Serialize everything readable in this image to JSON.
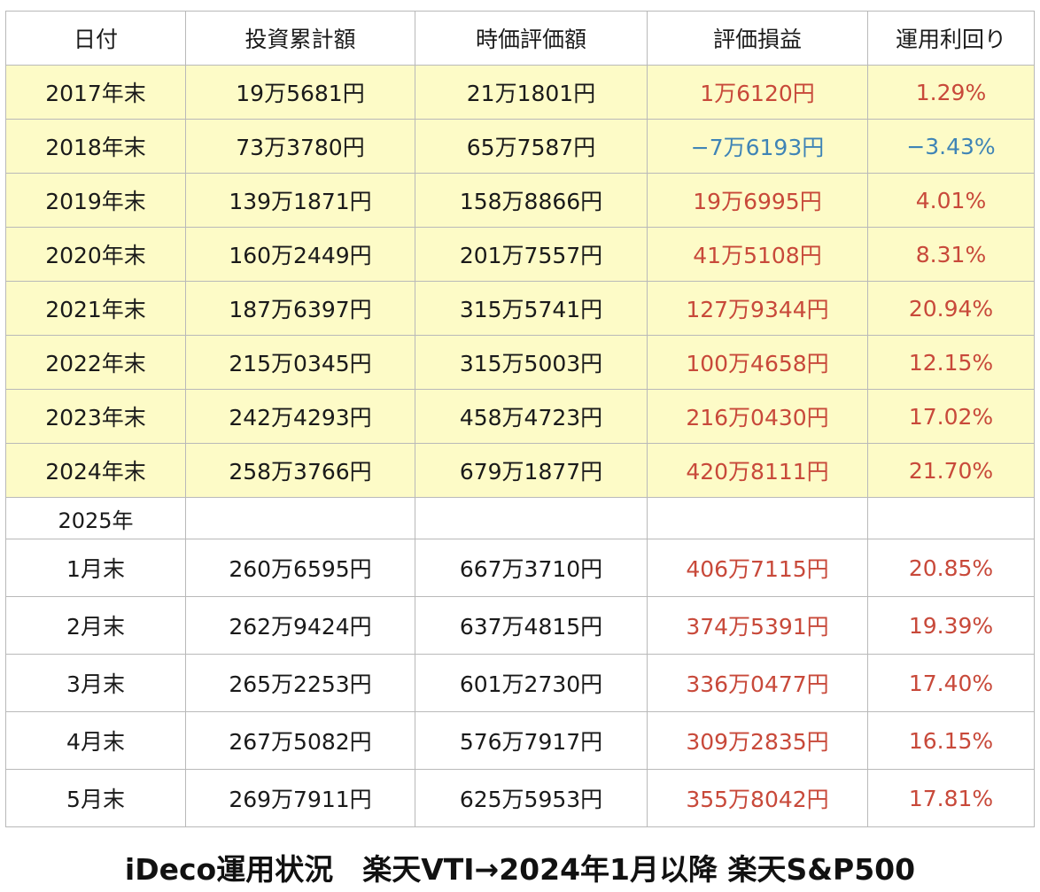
{
  "headers": [
    "日付",
    "投資累計額",
    "時価評価額",
    "評価損益",
    "運用利回り"
  ],
  "yearly_rows": [
    {
      "date": "2017年末",
      "invested": "19万5681円",
      "market": "21万1801円",
      "gain": "1万6120円",
      "yield": "1.29%",
      "sign": "pos"
    },
    {
      "date": "2018年末",
      "invested": "73万3780円",
      "market": "65万7587円",
      "gain": "−7万6193円",
      "yield": "−3.43%",
      "sign": "neg"
    },
    {
      "date": "2019年末",
      "invested": "139万1871円",
      "market": "158万8866円",
      "gain": "19万6995円",
      "yield": "4.01%",
      "sign": "pos"
    },
    {
      "date": "2020年末",
      "invested": "160万2449円",
      "market": "201万7557円",
      "gain": "41万5108円",
      "yield": "8.31%",
      "sign": "pos"
    },
    {
      "date": "2021年末",
      "invested": "187万6397円",
      "market": "315万5741円",
      "gain": "127万9344円",
      "yield": "20.94%",
      "sign": "pos"
    },
    {
      "date": "2022年末",
      "invested": "215万0345円",
      "market": "315万5003円",
      "gain": "100万4658円",
      "yield": "12.15%",
      "sign": "pos"
    },
    {
      "date": "2023年末",
      "invested": "242万4293円",
      "market": "458万4723円",
      "gain": "216万0430円",
      "yield": "17.02%",
      "sign": "pos"
    },
    {
      "date": "2024年末",
      "invested": "258万3766円",
      "market": "679万1877円",
      "gain": "420万8111円",
      "yield": "21.70%",
      "sign": "pos"
    }
  ],
  "subheading": "2025年",
  "monthly_rows": [
    {
      "date": "1月末",
      "invested": "260万6595円",
      "market": "667万3710円",
      "gain": "406万7115円",
      "yield": "20.85%",
      "sign": "pos"
    },
    {
      "date": "2月末",
      "invested": "262万9424円",
      "market": "637万4815円",
      "gain": "374万5391円",
      "yield": "19.39%",
      "sign": "pos"
    },
    {
      "date": "3月末",
      "invested": "265万2253円",
      "market": "601万2730円",
      "gain": "336万0477円",
      "yield": "17.40%",
      "sign": "pos"
    },
    {
      "date": "4月末",
      "invested": "267万5082円",
      "market": "576万7917円",
      "gain": "309万2835円",
      "yield": "16.15%",
      "sign": "pos"
    },
    {
      "date": "5月末",
      "invested": "269万7911円",
      "market": "625万5953円",
      "gain": "355万8042円",
      "yield": "17.81%",
      "sign": "pos"
    }
  ],
  "caption": "iDeco運用状況　楽天VTI→2024年1月以降 楽天S&P500",
  "colors": {
    "highlight_row": "#fdfbc7",
    "positive": "#c8493a",
    "negative": "#3f84b6",
    "grid": "#b9b9b9"
  }
}
